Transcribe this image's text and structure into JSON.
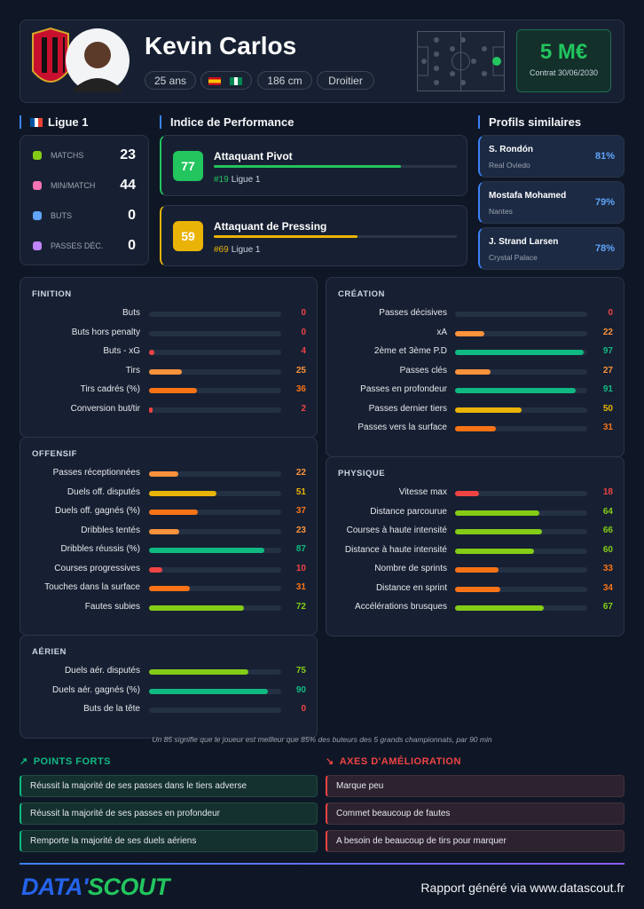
{
  "header": {
    "name": "Kevin Carlos",
    "age": "25 ans",
    "height": "186 cm",
    "foot": "Droitier",
    "market_value": "5 M€",
    "contract": "Contrat 30/06/2030"
  },
  "league": "Ligue 1",
  "stats": [
    {
      "label": "MATCHS",
      "value": 23
    },
    {
      "label": "MIN/MATCH",
      "value": 44
    },
    {
      "label": "BUTS",
      "value": 0
    },
    {
      "label": "PASSES DÉC.",
      "value": 0
    }
  ],
  "performance": {
    "title": "Indice de Performance",
    "items": [
      {
        "score": 77,
        "color": "#22c55e",
        "role": "Attaquant Pivot",
        "rank": "#19",
        "league": "Ligue 1"
      },
      {
        "score": 59,
        "color": "#eab308",
        "role": "Attaquant de Pressing",
        "rank": "#69",
        "league": "Ligue 1"
      }
    ]
  },
  "similar": {
    "title": "Profils similaires",
    "items": [
      {
        "name": "S. Rondón",
        "club": "Real Oviedo",
        "similarity": {
          "value": 81,
          "label": "81%"
        }
      },
      {
        "name": "Mostafa Mohamed",
        "club": "Nantes",
        "similarity": {
          "value": 79,
          "label": "79%"
        }
      },
      {
        "name": "J. Strand Larsen",
        "club": "Crystal Palace",
        "similarity": {
          "value": 78,
          "label": "78%"
        }
      }
    ]
  },
  "sections": [
    {
      "title": "FINITION",
      "metrics": [
        {
          "label": "Buts",
          "value": 0
        },
        {
          "label": "Buts hors penalty",
          "value": 0
        },
        {
          "label": "Buts - xG",
          "value": 4
        },
        {
          "label": "Tirs",
          "value": 25
        },
        {
          "label": "Tirs cadrés (%)",
          "value": 36
        },
        {
          "label": "Conversion but/tir",
          "value": 2
        }
      ]
    },
    {
      "title": "CRÉATION",
      "metrics": [
        {
          "label": "Passes décisives",
          "value": 0
        },
        {
          "label": "xA",
          "value": 22
        },
        {
          "label": "2ème et 3ème P.D",
          "value": 97
        },
        {
          "label": "Passes clés",
          "value": 27
        },
        {
          "label": "Passes en profondeur",
          "value": 91
        },
        {
          "label": "Passes dernier tiers",
          "value": 50
        },
        {
          "label": "Passes vers la surface",
          "value": 31
        }
      ]
    },
    {
      "title": "OFFENSIF",
      "metrics": [
        {
          "label": "Passes réceptionnées",
          "value": 22
        },
        {
          "label": "Duels off. disputés",
          "value": 51
        },
        {
          "label": "Duels off. gagnés (%)",
          "value": 37
        },
        {
          "label": "Dribbles tentés",
          "value": 23
        },
        {
          "label": "Dribbles réussis (%)",
          "value": 87
        },
        {
          "label": "Courses progressives",
          "value": 10
        },
        {
          "label": "Touches dans la surface",
          "value": 31
        },
        {
          "label": "Fautes subies",
          "value": 72
        }
      ]
    },
    {
      "title": "PHYSIQUE",
      "metrics": [
        {
          "label": "Vitesse max",
          "value": 18
        },
        {
          "label": "Distance parcourue",
          "value": 64
        },
        {
          "label": "Courses à haute intensité",
          "value": 66
        },
        {
          "label": "Distance à haute intensité",
          "value": 60
        },
        {
          "label": "Nombre de sprints",
          "value": 33
        },
        {
          "label": "Distance en sprint",
          "value": 34
        },
        {
          "label": "Accélérations brusques",
          "value": 67
        }
      ]
    },
    {
      "title": "AÉRIEN",
      "metrics": [
        {
          "label": "Duels aér. disputés",
          "value": 75
        },
        {
          "label": "Duels aér. gagnés (%)",
          "value": 90
        },
        {
          "label": "Buts de la tête",
          "value": 0
        }
      ]
    }
  ],
  "footnote": "Un 85 signifie que le joueur est meilleur que 85% des buteurs des 5 grands championnats, par 90 min",
  "strengths": {
    "title": "POINTS FORTS",
    "items": [
      "Réussit la majorité de ses passes dans le tiers adverse",
      "Réussit la majorité de ses passes en profondeur",
      "Remporte la majorité de ses duels aériens"
    ]
  },
  "improvements": {
    "title": "AXES D'AMÉLIORATION",
    "items": [
      "Marque peu",
      "Commet beaucoup de fautes",
      "A besoin de beaucoup de tirs pour marquer"
    ]
  },
  "footer": {
    "logo_left": "DATA'",
    "logo_right": "SCOUT",
    "text": "Rapport généré via www.datascout.fr"
  }
}
